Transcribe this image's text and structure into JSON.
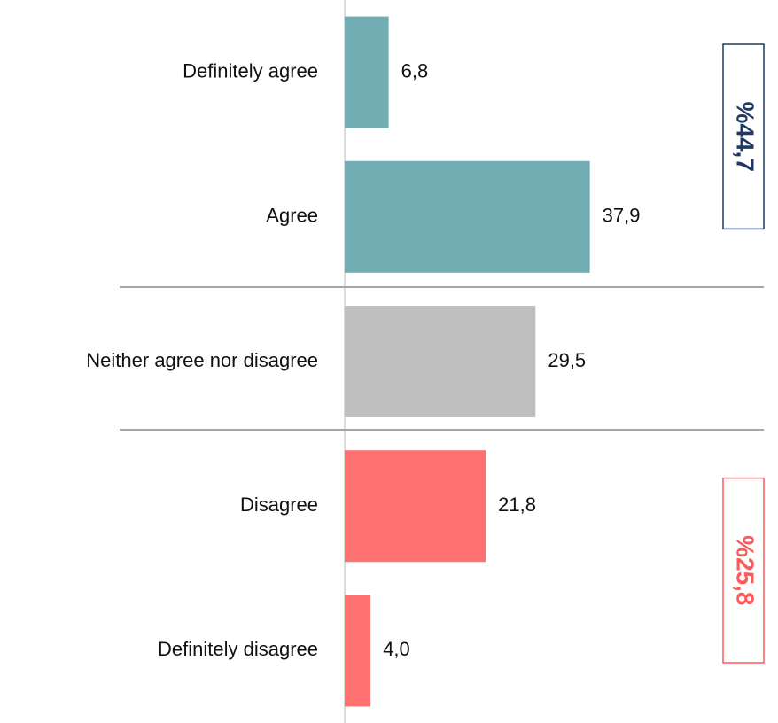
{
  "chart_data": {
    "type": "hbar",
    "categories": [
      "Definitely agree",
      "Agree",
      "Neither agree nor disagree",
      "Disagree",
      "Definitely disagree"
    ],
    "values": [
      6.8,
      37.9,
      29.5,
      21.8,
      4.0
    ],
    "value_labels": [
      "6,8",
      "37,9",
      "29,5",
      "21,8",
      "4,0"
    ],
    "colors": [
      "#72adb3",
      "#72adb3",
      "#bfbfbf",
      "#ff7070",
      "#ff7070"
    ],
    "xlim": [
      0,
      60
    ],
    "annotations": [
      {
        "text": "%44,7",
        "color": "#1f3864"
      },
      {
        "text": "%25,8",
        "color": "#ff5a5a"
      }
    ]
  }
}
